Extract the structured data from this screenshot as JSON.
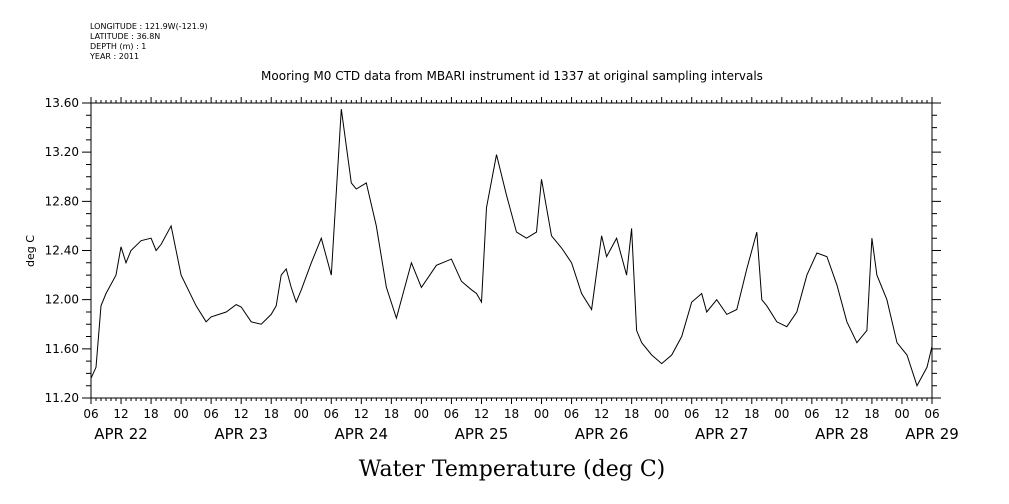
{
  "meta": {
    "longitude": "LONGITUDE : 121.9W(-121.9)",
    "latitude": "LATITUDE : 36.8N",
    "depth": "DEPTH (m) : 1",
    "year": "YEAR : 2011"
  },
  "chart_data": {
    "type": "line",
    "title": "Mooring M0 CTD data from MBARI instrument id 1337 at original sampling intervals",
    "subtitle": "Water Temperature (deg C)",
    "xlabel": "",
    "ylabel": "deg C",
    "xlim": [
      "2011-04-22T06:00",
      "2011-04-29T06:00"
    ],
    "ylim": [
      11.2,
      13.6
    ],
    "yticks": [
      "11.20",
      "11.60",
      "12.00",
      "12.40",
      "12.80",
      "13.20",
      "13.60"
    ],
    "xtick_hour_labels": [
      "06",
      "12",
      "18",
      "00",
      "06",
      "12",
      "18",
      "00",
      "06",
      "12",
      "18",
      "00",
      "06",
      "12",
      "18",
      "00",
      "06",
      "12",
      "18",
      "00",
      "06",
      "12",
      "18",
      "00",
      "06",
      "12",
      "18",
      "00",
      "06"
    ],
    "date_labels": [
      "APR 22",
      "APR 23",
      "APR 24",
      "APR 25",
      "APR 26",
      "APR 27",
      "APR 28",
      "APR 29"
    ],
    "grid": false,
    "series": [
      {
        "color": "#000000",
        "x": [
          "2011-04-22T06:00",
          "2011-04-22T07:00",
          "2011-04-22T08:00",
          "2011-04-22T09:00",
          "2011-04-22T11:00",
          "2011-04-22T12:00",
          "2011-04-22T13:00",
          "2011-04-22T14:00",
          "2011-04-22T16:00",
          "2011-04-22T18:00",
          "2011-04-22T19:00",
          "2011-04-22T20:00",
          "2011-04-22T22:00",
          "2011-04-23T00:00",
          "2011-04-23T03:00",
          "2011-04-23T05:00",
          "2011-04-23T06:00",
          "2011-04-23T09:00",
          "2011-04-23T11:00",
          "2011-04-23T12:00",
          "2011-04-23T14:00",
          "2011-04-23T16:00",
          "2011-04-23T18:00",
          "2011-04-23T19:00",
          "2011-04-23T20:00",
          "2011-04-23T21:00",
          "2011-04-23T22:00",
          "2011-04-23T23:00",
          "2011-04-24T00:00",
          "2011-04-24T02:00",
          "2011-04-24T04:00",
          "2011-04-24T06:00",
          "2011-04-24T08:00",
          "2011-04-24T10:00",
          "2011-04-24T11:00",
          "2011-04-24T13:00",
          "2011-04-24T15:00",
          "2011-04-24T17:00",
          "2011-04-24T19:00",
          "2011-04-24T22:00",
          "2011-04-25T00:00",
          "2011-04-25T03:00",
          "2011-04-25T06:00",
          "2011-04-25T08:00",
          "2011-04-25T10:00",
          "2011-04-25T11:00",
          "2011-04-25T12:00",
          "2011-04-25T13:00",
          "2011-04-25T15:00",
          "2011-04-25T17:00",
          "2011-04-25T19:00",
          "2011-04-25T21:00",
          "2011-04-25T23:00",
          "2011-04-26T00:00",
          "2011-04-26T02:00",
          "2011-04-26T04:00",
          "2011-04-26T06:00",
          "2011-04-26T08:00",
          "2011-04-26T10:00",
          "2011-04-26T12:00",
          "2011-04-26T13:00",
          "2011-04-26T15:00",
          "2011-04-26T17:00",
          "2011-04-26T18:00",
          "2011-04-26T19:00",
          "2011-04-26T20:00",
          "2011-04-26T22:00",
          "2011-04-27T00:00",
          "2011-04-27T02:00",
          "2011-04-27T04:00",
          "2011-04-27T06:00",
          "2011-04-27T08:00",
          "2011-04-27T09:00",
          "2011-04-27T11:00",
          "2011-04-27T13:00",
          "2011-04-27T15:00",
          "2011-04-27T17:00",
          "2011-04-27T19:00",
          "2011-04-27T20:00",
          "2011-04-27T21:00",
          "2011-04-27T23:00",
          "2011-04-28T01:00",
          "2011-04-28T03:00",
          "2011-04-28T05:00",
          "2011-04-28T07:00",
          "2011-04-28T09:00",
          "2011-04-28T11:00",
          "2011-04-28T13:00",
          "2011-04-28T15:00",
          "2011-04-28T17:00",
          "2011-04-28T18:00",
          "2011-04-28T19:00",
          "2011-04-28T21:00",
          "2011-04-28T23:00",
          "2011-04-29T01:00",
          "2011-04-29T03:00",
          "2011-04-29T05:00",
          "2011-04-29T06:00"
        ],
        "y": [
          11.36,
          11.45,
          11.95,
          12.05,
          12.2,
          12.43,
          12.3,
          12.4,
          12.48,
          12.5,
          12.4,
          12.45,
          12.6,
          12.2,
          11.95,
          11.82,
          11.86,
          11.9,
          11.96,
          11.94,
          11.82,
          11.8,
          11.88,
          11.95,
          12.2,
          12.25,
          12.1,
          11.98,
          12.08,
          12.3,
          12.5,
          12.2,
          13.55,
          12.95,
          12.9,
          12.95,
          12.6,
          12.1,
          11.85,
          12.3,
          12.1,
          12.28,
          12.33,
          12.15,
          12.08,
          12.05,
          11.98,
          12.75,
          13.18,
          12.85,
          12.55,
          12.5,
          12.55,
          12.98,
          12.52,
          12.42,
          12.3,
          12.05,
          11.92,
          12.52,
          12.35,
          12.5,
          12.2,
          12.58,
          11.75,
          11.65,
          11.55,
          11.48,
          11.55,
          11.7,
          11.98,
          12.05,
          11.9,
          12.0,
          11.88,
          11.92,
          12.25,
          12.55,
          12.0,
          11.95,
          11.82,
          11.78,
          11.9,
          12.2,
          12.38,
          12.35,
          12.12,
          11.82,
          11.65,
          11.75,
          12.5,
          12.2,
          12.0,
          11.65,
          11.55,
          11.3,
          11.45,
          11.62
        ]
      }
    ]
  }
}
